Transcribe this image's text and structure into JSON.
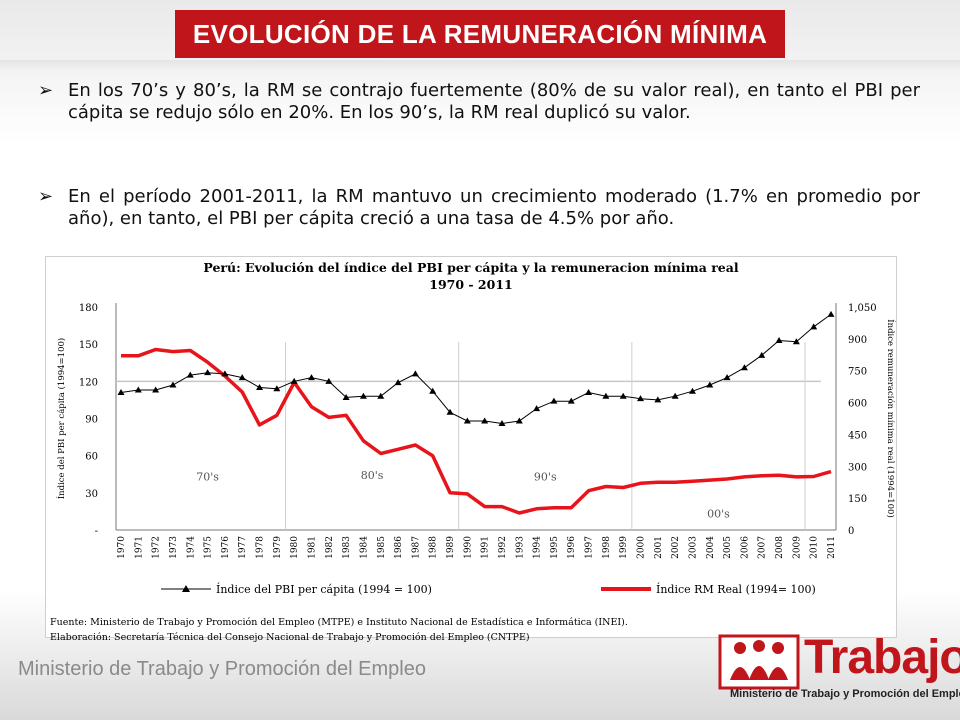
{
  "slide": {
    "title": "EVOLUCIÓN DE LA REMUNERACIÓN MÍNIMA",
    "bullets": [
      "En los 70’s y 80’s, la RM se contrajo fuertemente (80% de su valor real), en tanto el PBI per cápita se redujo sólo en 20%. En los 90’s, la RM real duplicó su valor.",
      "En el período 2001-2011, la RM mantuvo un crecimiento moderado (1.7% en promedio por año), en tanto, el PBI per cápita creció a una tasa de 4.5% por año."
    ],
    "bullet_symbol": "➢",
    "footer_ministry": "Ministerio de Trabajo y Promoción del Empleo",
    "logo": {
      "word": "Trabajo",
      "subtitle": "Ministerio de Trabajo y Promoción del Empleo",
      "icon": "people-logo-icon"
    },
    "sources": [
      "Fuente: Ministerio de Trabajo y Promoción del Empleo (MTPE) e Instituto Nacional de Estadística e Informática (INEI).",
      "Elaboración: Secretaría Técnica del Consejo Nacional de Trabajo y Promoción del Empleo (CNTPE)"
    ],
    "colors": {
      "accent": "#c0151b",
      "pbi_line": "#000000",
      "rm_line": "#e8141b"
    }
  },
  "chart_data": {
    "type": "line",
    "title": "Perú: Evolución del índice del PBI per cápita y la remuneracion mínima real",
    "subtitle": "1970 - 2011",
    "ylabel": "Índice del PBI per cápita (1994=100)",
    "y2label": "Índice remuneración mínima real (1994=100)",
    "ylim": [
      0,
      180
    ],
    "y2lim": [
      0,
      1050
    ],
    "yticks": [
      "180",
      "150",
      "120",
      "90",
      "60",
      "30",
      "-"
    ],
    "y2ticks": [
      "1,050",
      "900",
      "750",
      "600",
      "450",
      "300",
      "150",
      "0"
    ],
    "x": [
      "1970",
      "1971",
      "1972",
      "1973",
      "1974",
      "1975",
      "1976",
      "1977",
      "1978",
      "1979",
      "1980",
      "1981",
      "1982",
      "1983",
      "1984",
      "1985",
      "1986",
      "1987",
      "1988",
      "1989",
      "1990",
      "1991",
      "1992",
      "1993",
      "1994",
      "1995",
      "1996",
      "1997",
      "1998",
      "1999",
      "2000",
      "2001",
      "2002",
      "2003",
      "2004",
      "2005",
      "2006",
      "2007",
      "2008",
      "2009",
      "2010",
      "2011"
    ],
    "decade_labels": [
      "70's",
      "80's",
      "90's",
      "00's"
    ],
    "series": [
      {
        "name": "Índice del PBI per cápita (1994 = 100)",
        "axis": "left",
        "marker": "triangle",
        "values": [
          111,
          113,
          113,
          117,
          125,
          127,
          126,
          123,
          115,
          114,
          120,
          123,
          120,
          107,
          108,
          108,
          119,
          126,
          112,
          95,
          88,
          88,
          86,
          88,
          98,
          104,
          104,
          111,
          108,
          108,
          106,
          105,
          108,
          112,
          117,
          123,
          131,
          141,
          153,
          152,
          164,
          174
        ]
      },
      {
        "name": "Índice RM Real (1994= 100)",
        "axis": "right",
        "values": [
          820,
          820,
          850,
          840,
          845,
          790,
          725,
          650,
          495,
          540,
          695,
          580,
          530,
          540,
          420,
          360,
          380,
          400,
          350,
          175,
          170,
          110,
          110,
          80,
          100,
          105,
          105,
          185,
          205,
          200,
          220,
          225,
          225,
          230,
          235,
          240,
          250,
          255,
          258,
          250,
          252,
          275
        ]
      }
    ],
    "legend_placement": "bottom",
    "grid": "vertical decade separators"
  }
}
